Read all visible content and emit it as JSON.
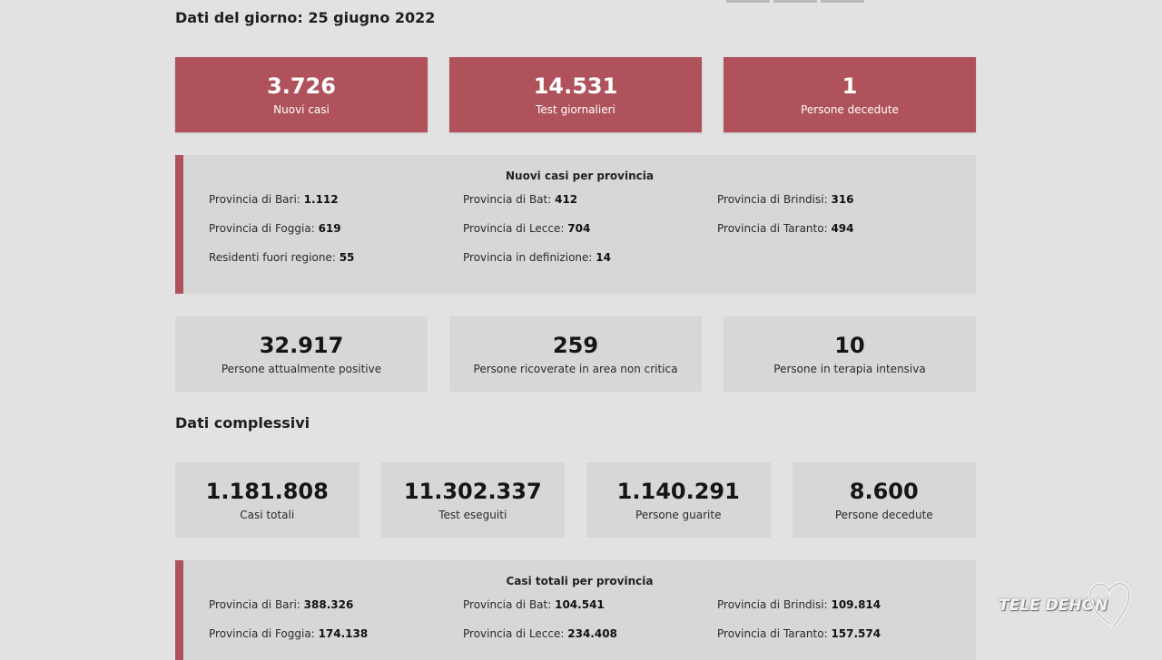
{
  "daily": {
    "title": "Dati del giorno: 25 giugno 2022",
    "cards": [
      {
        "value": "3.726",
        "label": "Nuovi casi"
      },
      {
        "value": "14.531",
        "label": "Test giornalieri"
      },
      {
        "value": "1",
        "label": "Persone decedute"
      }
    ],
    "province_box": {
      "title": "Nuovi casi per provincia",
      "items": [
        {
          "label": "Provincia di Bari:",
          "value": "1.112"
        },
        {
          "label": "Provincia di Bat:",
          "value": "412"
        },
        {
          "label": "Provincia di Brindisi:",
          "value": "316"
        },
        {
          "label": "Provincia di Foggia:",
          "value": "619"
        },
        {
          "label": "Provincia di Lecce:",
          "value": "704"
        },
        {
          "label": "Provincia di Taranto:",
          "value": "494"
        },
        {
          "label": "Residenti fuori regione:",
          "value": "55"
        },
        {
          "label": "Provincia in definizione:",
          "value": "14"
        }
      ]
    },
    "status_cards": [
      {
        "value": "32.917",
        "label": "Persone attualmente positive"
      },
      {
        "value": "259",
        "label": "Persone ricoverate in area non critica"
      },
      {
        "value": "10",
        "label": "Persone in terapia intensiva"
      }
    ]
  },
  "totals": {
    "title": "Dati complessivi",
    "cards": [
      {
        "value": "1.181.808",
        "label": "Casi totali"
      },
      {
        "value": "11.302.337",
        "label": "Test eseguiti"
      },
      {
        "value": "1.140.291",
        "label": "Persone guarite"
      },
      {
        "value": "8.600",
        "label": "Persone decedute"
      }
    ],
    "province_box": {
      "title": "Casi totali per provincia",
      "items": [
        {
          "label": "Provincia di Bari:",
          "value": "388.326"
        },
        {
          "label": "Provincia di Bat:",
          "value": "104.541"
        },
        {
          "label": "Provincia di Brindisi:",
          "value": "109.814"
        },
        {
          "label": "Provincia di Foggia:",
          "value": "174.138"
        },
        {
          "label": "Provincia di Lecce:",
          "value": "234.408"
        },
        {
          "label": "Provincia di Taranto:",
          "value": "157.574"
        }
      ]
    }
  },
  "watermark": {
    "text": "TELE DEHON",
    "icon": "heart-outline-icon"
  },
  "colors": {
    "accent": "#b0525b",
    "card_grey": "#d7d7d7",
    "background": "#e2e2e2"
  }
}
